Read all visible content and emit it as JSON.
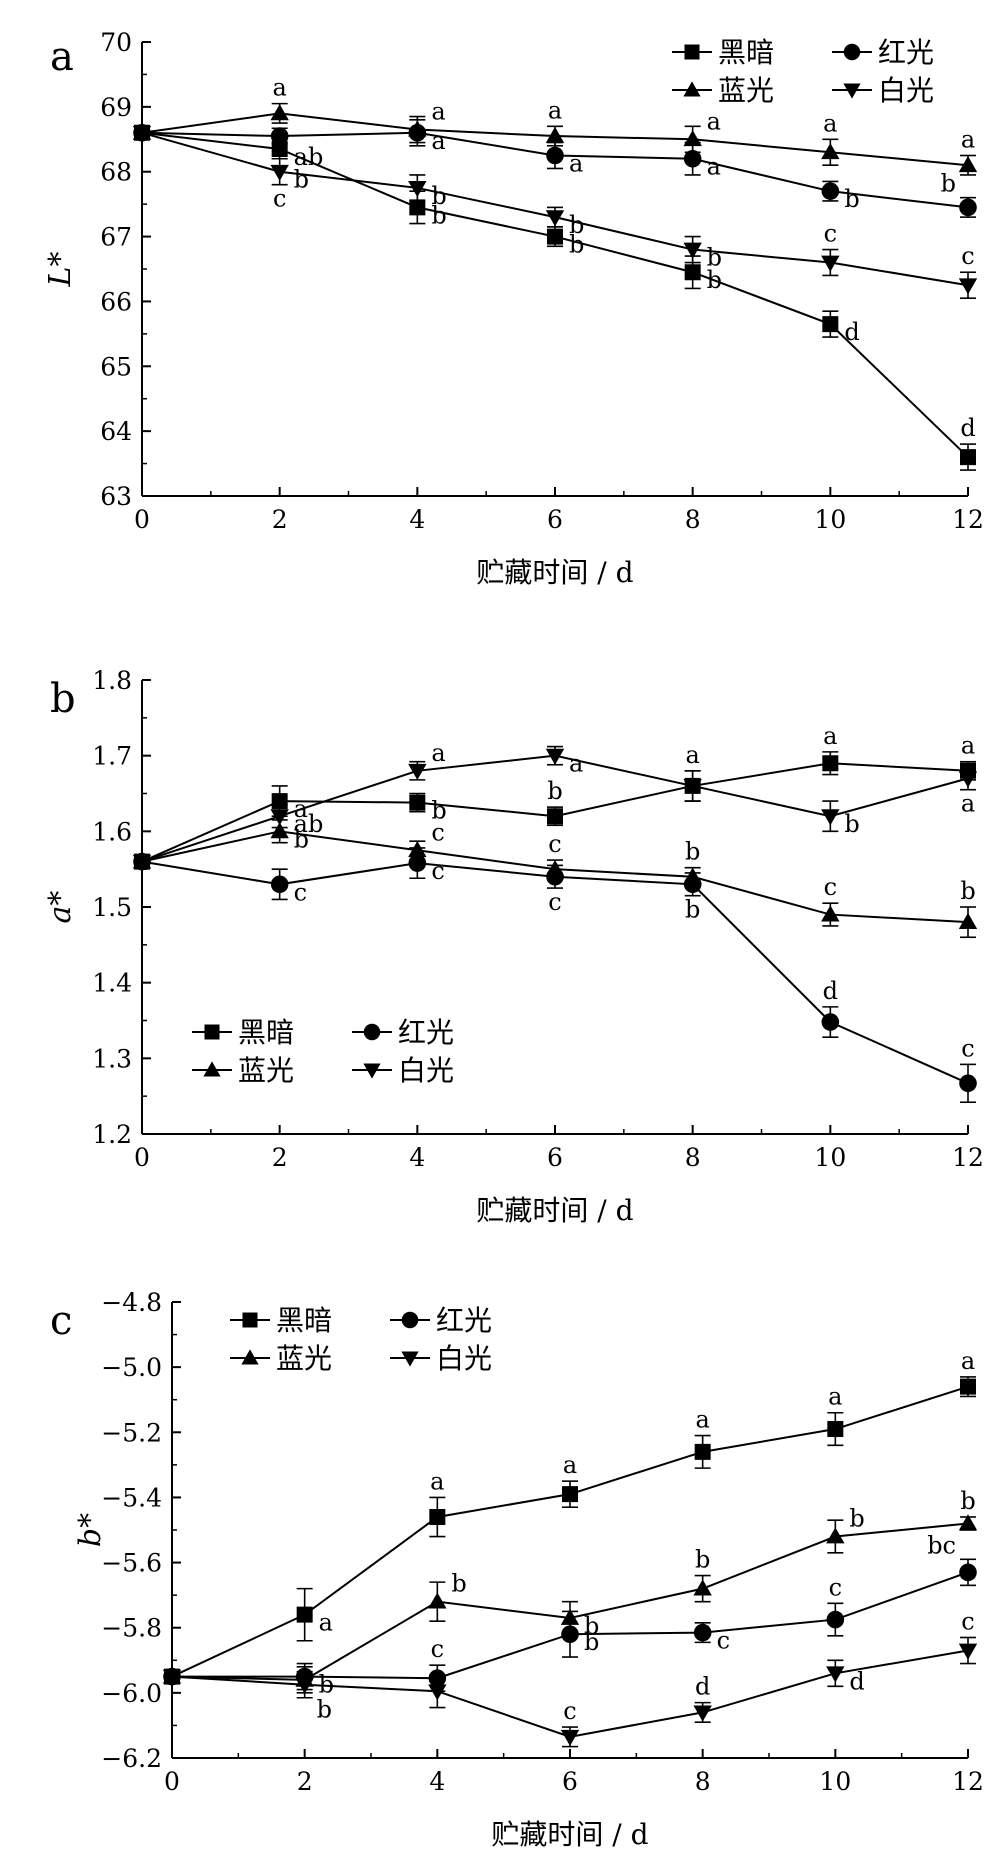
{
  "chart_data": [
    {
      "type": "line",
      "panel": "a",
      "ylabel": "L*",
      "xlabel": "贮藏时间 / d",
      "x": [
        0,
        2,
        4,
        6,
        8,
        10,
        12
      ],
      "xlim": [
        0,
        12
      ],
      "ylim": [
        63,
        70
      ],
      "yticks": [
        63,
        64,
        65,
        66,
        67,
        68,
        69,
        70
      ],
      "yticks_text": [
        "63",
        "64",
        "65",
        "66",
        "67",
        "68",
        "69",
        "70"
      ],
      "xticks": [
        0,
        2,
        4,
        6,
        8,
        10,
        12
      ],
      "xticks_text": [
        "0",
        "2",
        "4",
        "6",
        "8",
        "10",
        "12"
      ],
      "legend_position": "top-right",
      "series": [
        {
          "name": "黑暗",
          "marker": "square",
          "values": [
            68.6,
            68.35,
            67.45,
            67.0,
            66.45,
            65.65,
            63.6
          ],
          "errors": [
            0,
            0.15,
            0.25,
            0.15,
            0.25,
            0.2,
            0.2
          ],
          "labels": [
            "",
            "ab",
            "b",
            "b",
            "b",
            "d",
            "d"
          ],
          "label_sides": [
            "",
            "right",
            "right",
            "right",
            "right",
            "right",
            "top"
          ]
        },
        {
          "name": "红光",
          "marker": "circle",
          "values": [
            68.6,
            68.55,
            68.6,
            68.25,
            68.2,
            67.7,
            67.45
          ],
          "errors": [
            0,
            0.12,
            0.2,
            0.2,
            0.25,
            0.15,
            0.15
          ],
          "labels": [
            "",
            "",
            "a",
            "a",
            "a",
            "b",
            "b"
          ],
          "label_sides": [
            "",
            "",
            "right",
            "right",
            "right",
            "right",
            "top-left"
          ]
        },
        {
          "name": "蓝光",
          "marker": "triangle-up",
          "values": [
            68.6,
            68.9,
            68.65,
            68.55,
            68.5,
            68.3,
            68.1
          ],
          "errors": [
            0,
            0.15,
            0.2,
            0.15,
            0.2,
            0.2,
            0.15
          ],
          "labels": [
            "",
            "a",
            "a",
            "a",
            "a",
            "a",
            "a"
          ],
          "label_sides": [
            "",
            "top",
            "top-right",
            "top",
            "top-right",
            "top",
            "top"
          ]
        },
        {
          "name": "白光",
          "marker": "triangle-down",
          "values": [
            68.6,
            68.0,
            67.75,
            67.3,
            66.8,
            66.6,
            66.25
          ],
          "errors": [
            0,
            0.2,
            0.2,
            0.15,
            0.2,
            0.2,
            0.2
          ],
          "labels": [
            "",
            "b,c",
            "b",
            "b",
            "b",
            "c",
            "c"
          ],
          "label_sides": [
            "",
            "right,bottom",
            "right",
            "right",
            "right",
            "top",
            "top"
          ]
        }
      ]
    },
    {
      "type": "line",
      "panel": "b",
      "ylabel": "a*",
      "xlabel": "贮藏时间 / d",
      "x": [
        0,
        2,
        4,
        6,
        8,
        10,
        12
      ],
      "xlim": [
        0,
        12
      ],
      "ylim": [
        1.2,
        1.8
      ],
      "yticks": [
        1.2,
        1.3,
        1.4,
        1.5,
        1.6,
        1.7,
        1.8
      ],
      "yticks_text": [
        "1.2",
        "1.3",
        "1.4",
        "1.5",
        "1.6",
        "1.7",
        "1.8"
      ],
      "xticks": [
        0,
        2,
        4,
        6,
        8,
        10,
        12
      ],
      "xticks_text": [
        "0",
        "2",
        "4",
        "6",
        "8",
        "10",
        "12"
      ],
      "legend_position": "bottom-left",
      "series": [
        {
          "name": "黑暗",
          "marker": "square",
          "values": [
            1.56,
            1.64,
            1.638,
            1.62,
            1.66,
            1.69,
            1.68
          ],
          "errors": [
            0,
            0.02,
            0.012,
            0.012,
            0.02,
            0.015,
            0.012
          ],
          "labels": [
            "",
            "a",
            "b",
            "b",
            "a",
            "a",
            "a"
          ],
          "label_sides": [
            "",
            "right",
            "right",
            "top",
            "top",
            "top",
            "top"
          ]
        },
        {
          "name": "红光",
          "marker": "circle",
          "values": [
            1.56,
            1.53,
            1.558,
            1.54,
            1.53,
            1.348,
            1.267
          ],
          "errors": [
            0,
            0.02,
            0.02,
            0.015,
            0.015,
            0.02,
            0.025
          ],
          "labels": [
            "",
            "c",
            "c",
            "c",
            "b",
            "d",
            "c"
          ],
          "label_sides": [
            "",
            "right",
            "right",
            "bottom",
            "bottom",
            "top",
            "top"
          ]
        },
        {
          "name": "蓝光",
          "marker": "triangle-up",
          "values": [
            1.56,
            1.6,
            1.575,
            1.55,
            1.54,
            1.49,
            1.48
          ],
          "errors": [
            0,
            0.015,
            0.012,
            0.012,
            0.012,
            0.015,
            0.02
          ],
          "labels": [
            "",
            "b",
            "c",
            "c",
            "b",
            "c",
            "b"
          ],
          "label_sides": [
            "",
            "right",
            "top-right",
            "top",
            "top",
            "top",
            "top"
          ]
        },
        {
          "name": "白光",
          "marker": "triangle-down",
          "values": [
            1.56,
            1.62,
            1.68,
            1.7,
            1.66,
            1.62,
            1.67
          ],
          "errors": [
            0,
            0.015,
            0.012,
            0.012,
            0.02,
            0.02,
            0.015
          ],
          "labels": [
            "",
            "ab",
            "a",
            "a",
            "",
            "b",
            "a"
          ],
          "label_sides": [
            "",
            "right",
            "top-right",
            "right",
            "",
            "right",
            "bottom"
          ]
        }
      ]
    },
    {
      "type": "line",
      "panel": "c",
      "ylabel": "b*",
      "xlabel": "贮藏时间 / d",
      "x": [
        0,
        2,
        4,
        6,
        8,
        10,
        12
      ],
      "xlim": [
        0,
        12
      ],
      "ylim": [
        -6.2,
        -4.8
      ],
      "yticks": [
        -6.2,
        -6.0,
        -5.8,
        -5.6,
        -5.4,
        -5.2,
        -5.0,
        -4.8
      ],
      "yticks_text": [
        "−6.2",
        "−6.0",
        "−5.8",
        "−5.6",
        "−5.4",
        "−5.2",
        "−5.0",
        "−4.8"
      ],
      "xticks": [
        0,
        2,
        4,
        6,
        8,
        10,
        12
      ],
      "xticks_text": [
        "0",
        "2",
        "4",
        "6",
        "8",
        "10",
        "12"
      ],
      "legend_position": "top-left",
      "series": [
        {
          "name": "黑暗",
          "marker": "square",
          "values": [
            -5.95,
            -5.76,
            -5.46,
            -5.39,
            -5.26,
            -5.19,
            -5.06
          ],
          "errors": [
            0,
            0.08,
            0.06,
            0.04,
            0.05,
            0.05,
            0.03
          ],
          "labels": [
            "",
            "a",
            "a",
            "a",
            "a",
            "a",
            "a"
          ],
          "label_sides": [
            "",
            "right",
            "top",
            "top",
            "top",
            "top",
            "top"
          ]
        },
        {
          "name": "红光",
          "marker": "circle",
          "values": [
            -5.95,
            -5.95,
            -5.955,
            -5.82,
            -5.815,
            -5.775,
            -5.63
          ],
          "errors": [
            0,
            0.04,
            0.04,
            0.07,
            0.03,
            0.05,
            0.04
          ],
          "labels": [
            "",
            "b",
            "c",
            "b",
            "c",
            "c",
            "bc"
          ],
          "label_sides": [
            "",
            "right",
            "top",
            "right",
            "right",
            "top",
            "top-left"
          ]
        },
        {
          "name": "蓝光",
          "marker": "triangle-up",
          "values": [
            -5.95,
            -5.96,
            -5.72,
            -5.77,
            -5.68,
            -5.52,
            -5.48
          ],
          "errors": [
            0,
            0.04,
            0.06,
            0.05,
            0.04,
            0.05,
            0.02
          ],
          "labels": [
            "",
            "",
            "b",
            "b",
            "b",
            "b",
            "b"
          ],
          "label_sides": [
            "",
            "",
            "top-right",
            "right",
            "top",
            "top-right",
            "top"
          ]
        },
        {
          "name": "白光",
          "marker": "triangle-down",
          "values": [
            -5.95,
            -5.975,
            -5.995,
            -6.135,
            -6.06,
            -5.94,
            -5.87
          ],
          "errors": [
            0,
            0.04,
            0.05,
            0.03,
            0.03,
            0.04,
            0.04
          ],
          "labels": [
            "",
            "b",
            "",
            "c",
            "d",
            "d",
            "c"
          ],
          "label_sides": [
            "",
            "bottom-right",
            "",
            "top",
            "top",
            "right",
            "top"
          ]
        }
      ]
    }
  ],
  "panels": [
    {
      "letter": "a",
      "legend": [
        [
          "黑暗",
          "红光"
        ],
        [
          "蓝光",
          "白光"
        ]
      ]
    },
    {
      "letter": "b",
      "legend": [
        [
          "黑暗",
          "红光"
        ],
        [
          "蓝光",
          "白光"
        ]
      ]
    },
    {
      "letter": "c",
      "legend": [
        [
          "黑暗",
          "红光"
        ],
        [
          "蓝光",
          "白光"
        ]
      ]
    }
  ]
}
